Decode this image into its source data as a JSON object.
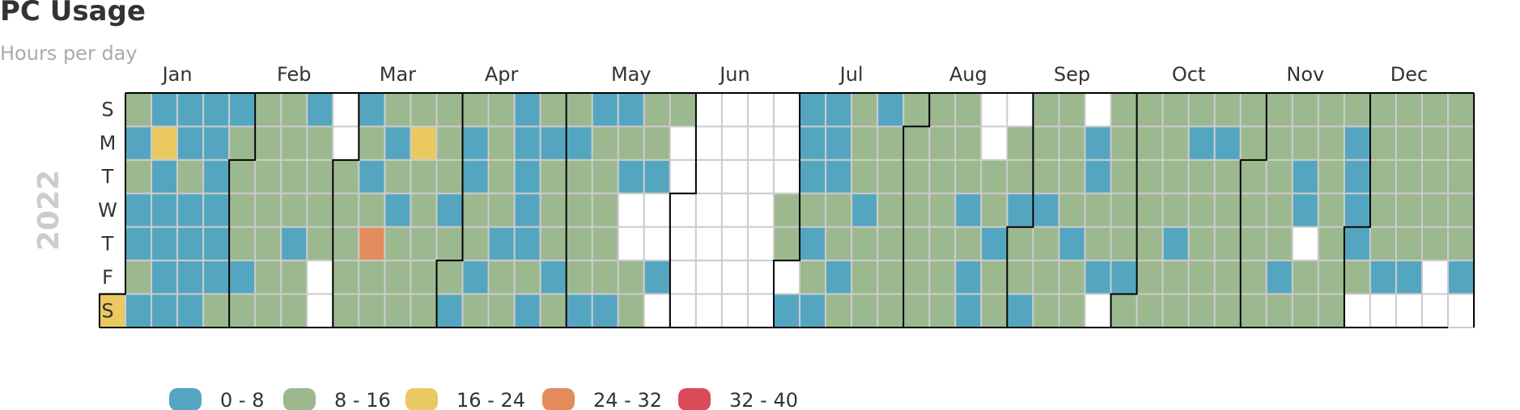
{
  "title": "PC Usage",
  "subtitle": "Hours per day",
  "chart_data": {
    "type": "heatmap",
    "title": "PC Usage",
    "subtitle": "Hours per day",
    "year": "2022",
    "months": [
      "Jan",
      "Feb",
      "Mar",
      "Apr",
      "May",
      "Jun",
      "Jul",
      "Aug",
      "Sep",
      "Oct",
      "Nov",
      "Dec"
    ],
    "weekdays": [
      "S",
      "M",
      "T",
      "W",
      "T",
      "F",
      "S"
    ],
    "value_unit": "hours per day",
    "ranges": [
      {
        "label": "0 - 8",
        "min": 0,
        "max": 8,
        "color": "#54a6c0"
      },
      {
        "label": "8 - 16",
        "min": 8,
        "max": 16,
        "color": "#9cb88f"
      },
      {
        "label": "16 - 24",
        "min": 16,
        "max": 24,
        "color": "#ebc962"
      },
      {
        "label": "24 - 32",
        "min": 24,
        "max": 32,
        "color": "#e48c5d"
      },
      {
        "label": "32 - 40",
        "min": 32,
        "max": 40,
        "color": "#db4a5b"
      }
    ],
    "empty_color": "#ffffff",
    "daily_range_index": [
      2,
      1,
      0,
      1,
      0,
      0,
      1,
      0,
      0,
      2,
      0,
      0,
      0,
      0,
      0,
      0,
      0,
      1,
      0,
      0,
      0,
      0,
      0,
      0,
      0,
      0,
      0,
      0,
      1,
      0,
      1,
      1,
      1,
      1,
      0,
      1,
      1,
      1,
      1,
      1,
      1,
      1,
      1,
      1,
      1,
      1,
      1,
      0,
      1,
      1,
      0,
      1,
      1,
      1,
      1,
      -1,
      -1,
      -1,
      -1,
      1,
      1,
      1,
      1,
      1,
      0,
      1,
      0,
      1,
      3,
      1,
      1,
      1,
      0,
      1,
      0,
      1,
      1,
      1,
      1,
      2,
      1,
      1,
      1,
      1,
      1,
      1,
      1,
      1,
      0,
      1,
      1,
      0,
      1,
      0,
      0,
      1,
      1,
      0,
      1,
      1,
      1,
      1,
      1,
      0,
      1,
      1,
      0,
      0,
      0,
      0,
      0,
      1,
      0,
      1,
      0,
      1,
      1,
      1,
      0,
      1,
      1,
      0,
      1,
      1,
      1,
      1,
      0,
      0,
      1,
      1,
      1,
      1,
      1,
      0,
      0,
      1,
      0,
      -1,
      -1,
      1,
      1,
      1,
      1,
      0,
      -1,
      -1,
      0,
      -1,
      1,
      -1,
      -1,
      -1,
      -1,
      -1,
      -1,
      -1,
      -1,
      -1,
      -1,
      -1,
      -1,
      -1,
      -1,
      -1,
      -1,
      -1,
      -1,
      -1,
      -1,
      -1,
      -1,
      -1,
      -1,
      -1,
      -1,
      -1,
      -1,
      -1,
      -1,
      1,
      1,
      -1,
      0,
      0,
      0,
      0,
      1,
      0,
      1,
      0,
      0,
      0,
      0,
      1,
      1,
      0,
      1,
      1,
      1,
      1,
      0,
      1,
      1,
      1,
      0,
      1,
      1,
      1,
      1,
      1,
      1,
      1,
      1,
      1,
      1,
      1,
      1,
      1,
      1,
      1,
      1,
      1,
      1,
      1,
      1,
      1,
      1,
      1,
      0,
      1,
      0,
      0,
      -1,
      -1,
      1,
      1,
      0,
      1,
      1,
      -1,
      1,
      1,
      0,
      1,
      1,
      0,
      1,
      1,
      1,
      0,
      1,
      1,
      1,
      1,
      1,
      1,
      1,
      0,
      1,
      1,
      -1,
      0,
      0,
      1,
      1,
      0,
      -1,
      1,
      1,
      1,
      1,
      1,
      0,
      1,
      1,
      1,
      1,
      1,
      1,
      1,
      1,
      1,
      1,
      1,
      1,
      0,
      1,
      1,
      1,
      0,
      1,
      1,
      1,
      1,
      1,
      1,
      0,
      1,
      1,
      1,
      1,
      1,
      1,
      1,
      1,
      1,
      1,
      1,
      1,
      1,
      1,
      1,
      1,
      1,
      0,
      1,
      1,
      1,
      0,
      0,
      -1,
      1,
      1,
      1,
      1,
      1,
      1,
      1,
      1,
      1,
      1,
      0,
      0,
      0,
      0,
      1,
      -1,
      1,
      1,
      1,
      1,
      1,
      0,
      -1,
      1,
      1,
      1,
      1,
      1,
      0,
      -1,
      1,
      1,
      1,
      1,
      1,
      -1,
      -1,
      1,
      1,
      1,
      1,
      1,
      0
    ]
  }
}
